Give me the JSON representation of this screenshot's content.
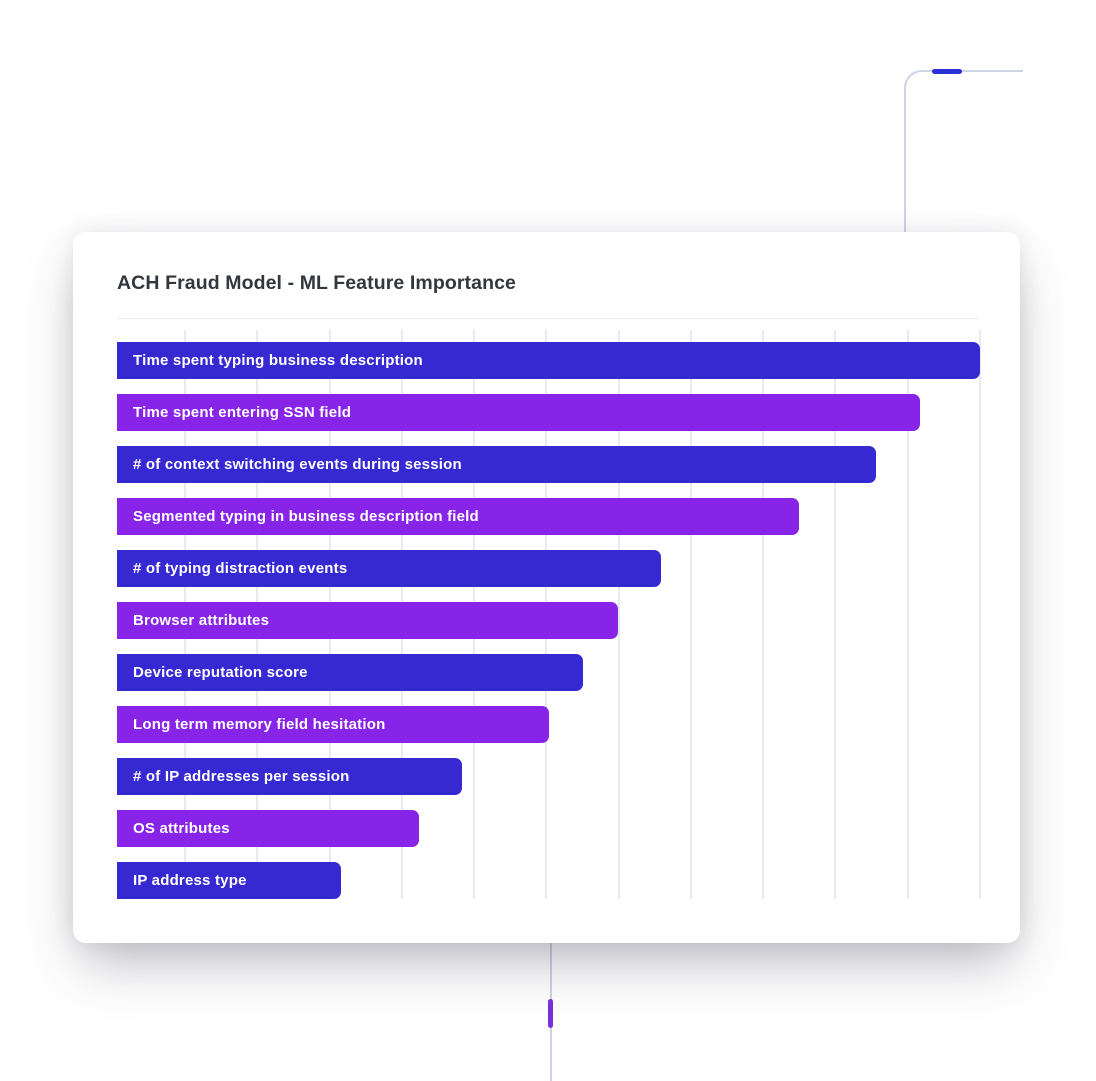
{
  "card": {
    "title": "ACH Fraud Model - ML Feature Importance"
  },
  "chart_data": {
    "type": "bar",
    "orientation": "horizontal",
    "title": "ACH Fraud Model - ML Feature Importance",
    "categories": [
      "Time spent typing business description",
      "Time spent entering SSN field",
      "# of context switching events during session",
      "Segmented typing in business description field",
      "# of typing distraction events",
      "Browser attributes",
      "Device reputation score",
      "Long term memory field hesitation",
      "# of IP addresses per session",
      "OS attributes",
      "IP address type"
    ],
    "values": [
      1.0,
      0.93,
      0.88,
      0.79,
      0.63,
      0.58,
      0.54,
      0.5,
      0.4,
      0.35,
      0.26
    ],
    "xlim": [
      0,
      1.0
    ],
    "axis_tick_labels_shown": false,
    "value_labels_shown": false,
    "grid": "vertical",
    "gridline_count": 12,
    "gridline_color": "#e7eaf1",
    "bar_colors_alternating": [
      "#3729D2",
      "#8824E8"
    ],
    "label_text_color": "#ffffff",
    "legend": "none"
  },
  "decor": {
    "line_color": "#CDD4E4",
    "top_right_dash_color": "#2B2FD8",
    "bottom_dash_color": "#7C2EDC"
  }
}
